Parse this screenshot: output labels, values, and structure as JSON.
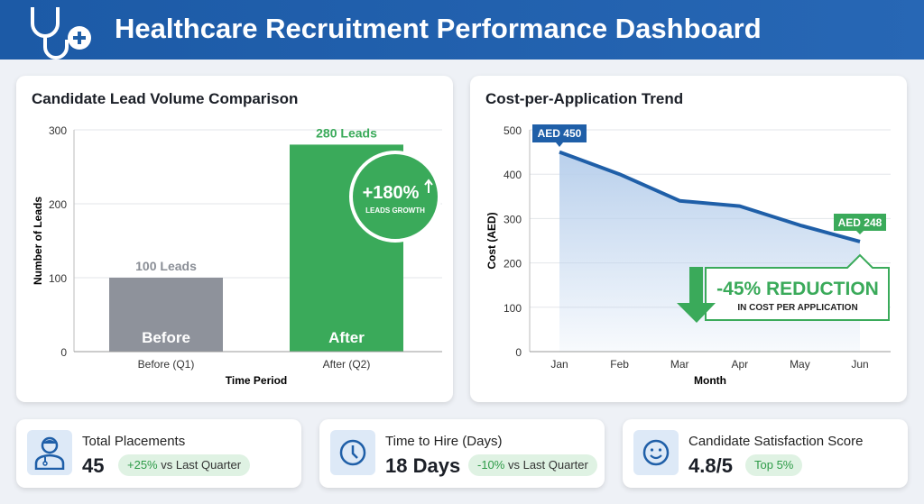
{
  "header": {
    "title": "Healthcare Recruitment Performance Dashboard",
    "icon": "stethoscope-icon"
  },
  "colors": {
    "header": "#1f5fa8",
    "before": "#8e929b",
    "after": "#3aaa5a",
    "line": "#1f5fa8",
    "green": "#3aaa5a"
  },
  "chart_data": [
    {
      "type": "bar",
      "title": "Candidate Lead Volume Comparison",
      "xlabel": "Time Period",
      "ylabel": "Number of Leads",
      "ylim": [
        0,
        300
      ],
      "yticks": [
        "0",
        "100",
        "200",
        "300"
      ],
      "categories": [
        "Before (Q1)",
        "After (Q2)"
      ],
      "values": [
        100,
        280
      ],
      "bar_labels": [
        "Before",
        "After"
      ],
      "data_labels": [
        "100 Leads",
        "280 Leads"
      ],
      "badge": {
        "value": "+180%",
        "text": "LEADS GROWTH"
      }
    },
    {
      "type": "area",
      "title": "Cost-per-Application Trend",
      "xlabel": "Month",
      "ylabel": "Cost (AED)",
      "ylim": [
        0,
        500
      ],
      "yticks": [
        "0",
        "100",
        "200",
        "300",
        "400",
        "500"
      ],
      "grid": true,
      "categories": [
        "Jan",
        "Feb",
        "Mar",
        "Apr",
        "May",
        "Jun"
      ],
      "values": [
        450,
        400,
        340,
        328,
        285,
        248
      ],
      "start_label": "AED 450",
      "end_label": "AED 248",
      "callout": {
        "value": "-45% REDUCTION",
        "text": "IN COST PER APPLICATION"
      }
    }
  ],
  "kpis": [
    {
      "label": "Total Placements",
      "value": "45",
      "delta": "+25%",
      "delta_text": " vs Last Quarter",
      "icon": "doctor-icon"
    },
    {
      "label": "Time to Hire (Days)",
      "value": "18 Days",
      "delta": "-10%",
      "delta_text": " vs Last Quarter",
      "icon": "clock-icon"
    },
    {
      "label": "Candidate Satisfaction Score",
      "value": "4.8/5",
      "delta": "Top 5%",
      "delta_text": "",
      "icon": "smiley-icon"
    }
  ]
}
